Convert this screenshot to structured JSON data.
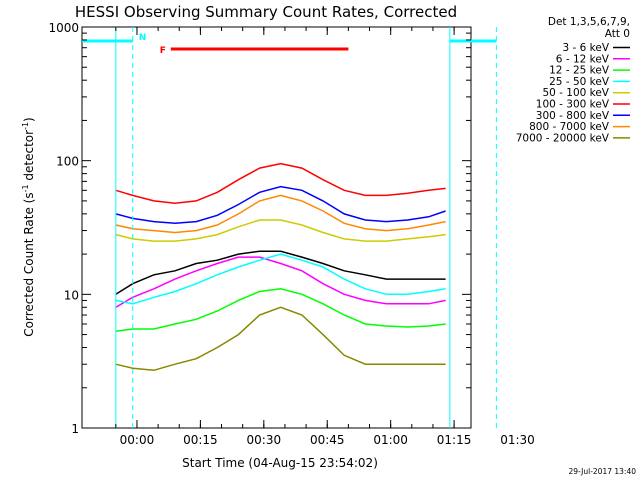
{
  "chart_data": {
    "type": "line",
    "title": "HESSI Observing Summary Count Rates, Corrected",
    "xlabel": "Start Time (04-Aug-15 23:54:02)",
    "ylabel": "Corrected Count Rate (s",
    "ylabel_sup1": "-1",
    "ylabel_mid": " detector",
    "ylabel_sup2": "-1",
    "ylabel_end": ")",
    "y_scale": "log",
    "ylim": [
      1,
      1000
    ],
    "xlim_minutes": [
      -7,
      85
    ],
    "x_ticks": [
      {
        "label": "00:00",
        "minutes": 6
      },
      {
        "label": "00:15",
        "minutes": 21
      },
      {
        "label": "00:30",
        "minutes": 36
      },
      {
        "label": "00:45",
        "minutes": 51
      },
      {
        "label": "01:00",
        "minutes": 66
      },
      {
        "label": "01:15",
        "minutes": 81
      },
      {
        "label": "01:30",
        "minutes": 96
      }
    ],
    "y_ticks": [
      {
        "label": "1",
        "value": 1
      },
      {
        "label": "10",
        "value": 10
      },
      {
        "label": "100",
        "value": 100
      },
      {
        "label": "1000",
        "value": 1000
      }
    ],
    "legend_header": [
      "Det 1,3,5,6,7,9,",
      "Att 0"
    ],
    "legend_position": "right",
    "grid": false,
    "series": [
      {
        "name": "3 - 6 keV",
        "color": "#000000",
        "x": [
          1,
          5,
          10,
          15,
          20,
          25,
          30,
          35,
          40,
          45,
          50,
          55,
          60,
          65,
          70,
          75,
          79
        ],
        "y": [
          10,
          12,
          14,
          15,
          17,
          18,
          20,
          21,
          21,
          19,
          17,
          15,
          14,
          13,
          13,
          13,
          13
        ]
      },
      {
        "name": "6 - 12 keV",
        "color": "#ff00ff",
        "x": [
          1,
          5,
          10,
          15,
          20,
          25,
          30,
          35,
          40,
          45,
          50,
          55,
          60,
          65,
          70,
          75,
          79
        ],
        "y": [
          8,
          9.5,
          11,
          13,
          15,
          17,
          19,
          19,
          17,
          15,
          12,
          10,
          9,
          8.5,
          8.5,
          8.5,
          9
        ]
      },
      {
        "name": "12 - 25 keV",
        "color": "#00ff00",
        "x": [
          1,
          5,
          10,
          15,
          20,
          25,
          30,
          35,
          40,
          45,
          50,
          55,
          60,
          65,
          70,
          75,
          79
        ],
        "y": [
          5.3,
          5.5,
          5.5,
          6,
          6.5,
          7.5,
          9,
          10.5,
          11,
          10,
          8.5,
          7,
          6,
          5.8,
          5.7,
          5.8,
          6
        ]
      },
      {
        "name": "25 - 50 keV",
        "color": "#00ffff",
        "x": [
          1,
          5,
          10,
          15,
          20,
          25,
          30,
          35,
          40,
          45,
          50,
          55,
          60,
          65,
          70,
          75,
          79
        ],
        "y": [
          9,
          8.5,
          9.5,
          10.5,
          12,
          14,
          16,
          18,
          20,
          18,
          16,
          13,
          11,
          10,
          10,
          10.5,
          11
        ]
      },
      {
        "name": "50 - 100 keV",
        "color": "#cccc00",
        "x": [
          1,
          5,
          10,
          15,
          20,
          25,
          30,
          35,
          40,
          45,
          50,
          55,
          60,
          65,
          70,
          75,
          79
        ],
        "y": [
          28,
          26,
          25,
          25,
          26,
          28,
          32,
          36,
          36,
          33,
          29,
          26,
          25,
          25,
          26,
          27,
          28
        ]
      },
      {
        "name": "100 - 300 keV",
        "color": "#ff0000",
        "x": [
          1,
          5,
          10,
          15,
          20,
          25,
          30,
          35,
          40,
          45,
          50,
          55,
          60,
          65,
          70,
          75,
          79
        ],
        "y": [
          60,
          55,
          50,
          48,
          50,
          58,
          72,
          88,
          95,
          88,
          72,
          60,
          55,
          55,
          57,
          60,
          62
        ]
      },
      {
        "name": "300 - 800 keV",
        "color": "#0000ff",
        "x": [
          1,
          5,
          10,
          15,
          20,
          25,
          30,
          35,
          40,
          45,
          50,
          55,
          60,
          65,
          70,
          75,
          79
        ],
        "y": [
          40,
          37,
          35,
          34,
          35,
          39,
          47,
          58,
          64,
          60,
          50,
          40,
          36,
          35,
          36,
          38,
          42
        ]
      },
      {
        "name": "800 - 7000 keV",
        "color": "#ff8800",
        "x": [
          1,
          5,
          10,
          15,
          20,
          25,
          30,
          35,
          40,
          45,
          50,
          55,
          60,
          65,
          70,
          75,
          79
        ],
        "y": [
          33,
          31,
          30,
          29,
          30,
          33,
          40,
          50,
          55,
          50,
          42,
          34,
          31,
          30,
          31,
          33,
          35
        ]
      },
      {
        "name": "7000 - 20000 keV",
        "color": "#888800",
        "x": [
          1,
          5,
          10,
          15,
          20,
          25,
          30,
          35,
          40,
          45,
          50,
          55,
          60,
          65,
          70,
          75,
          79
        ],
        "y": [
          3,
          2.8,
          2.7,
          3,
          3.3,
          4,
          5,
          7,
          8,
          7,
          5,
          3.5,
          3,
          3,
          3,
          3,
          3
        ]
      }
    ],
    "flags": {
      "night_label": "N",
      "flare_label": "F",
      "flare_minutes": [
        14,
        56
      ],
      "night_bar_minutes": [
        [
          -7,
          5
        ],
        [
          80,
          91
        ]
      ],
      "saa_bounds_minutes": [
        1,
        5,
        80,
        91
      ]
    },
    "timestamp": "29-Jul-2017 13:40"
  }
}
